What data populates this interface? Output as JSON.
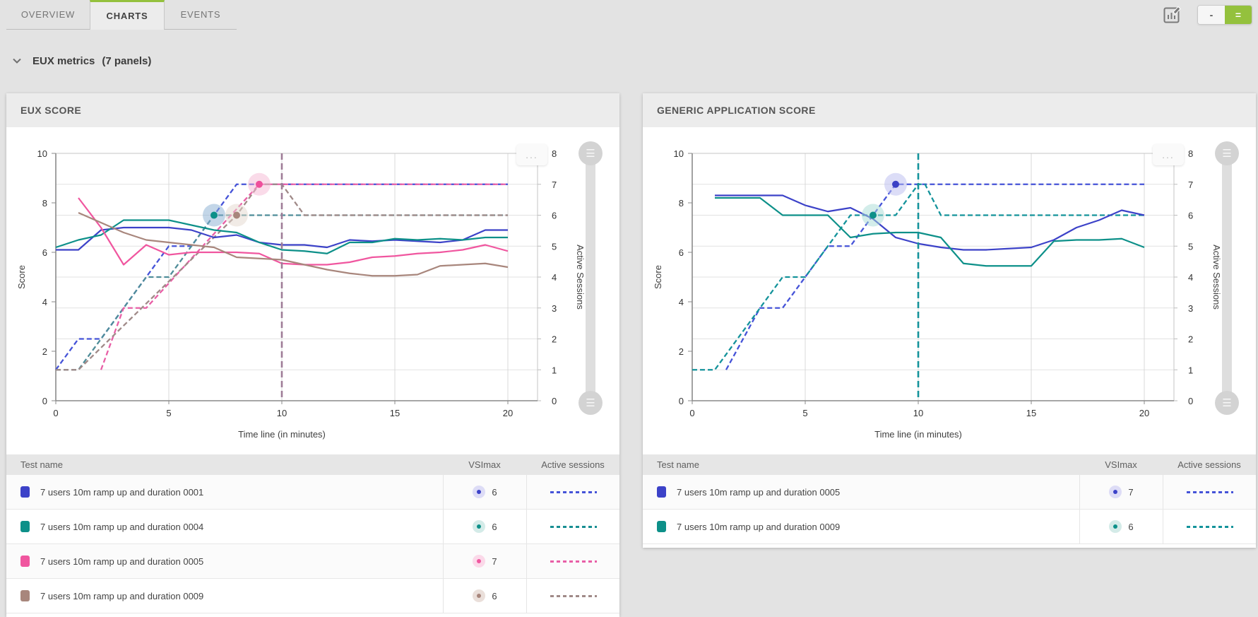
{
  "header": {
    "tabs": [
      {
        "label": "OVERVIEW",
        "active": false
      },
      {
        "label": "CHARTS",
        "active": true
      },
      {
        "label": "EVENTS",
        "active": false
      }
    ],
    "toolbar": {
      "edit_chart_icon": "bar-chart-with-pencil",
      "layout_single_label": "-",
      "layout_double_label": "=",
      "accent_green": "#94c13d"
    }
  },
  "section": {
    "collapse_icon": "chevron-down",
    "title": "EUX metrics",
    "count": "(7 panels)"
  },
  "panels": [
    {
      "title": "EUX SCORE",
      "menu_icon": "ellipsis",
      "slider_handle_icon": "drag-handle",
      "table": {
        "headers": [
          "Test name",
          "VSImax",
          "Active sessions"
        ],
        "rows": [
          {
            "swatch_color": "#3c42c8",
            "name": "7 users 10m ramp up and duration 0001",
            "vsimax": "6",
            "badge_bg": "#dddcf6",
            "dash_color": "#4553d8"
          },
          {
            "swatch_color": "#0d9089",
            "name": "7 users 10m ramp up and duration 0004",
            "vsimax": "6",
            "badge_bg": "#d4ebe8",
            "dash_color": "#188e92"
          },
          {
            "swatch_color": "#f0569f",
            "name": "7 users 10m ramp up and duration 0005",
            "vsimax": "7",
            "badge_bg": "#fbd9e9",
            "dash_color": "#e85fa6"
          },
          {
            "swatch_color": "#a8867c",
            "name": "7 users 10m ramp up and duration 0009",
            "vsimax": "6",
            "badge_bg": "#eadfda",
            "dash_color": "#a08a88"
          }
        ]
      },
      "chart_data": {
        "type": "line",
        "title": "EUX SCORE",
        "xlabel": "Time line (in minutes)",
        "ylabel_left": "Score",
        "ylabel_right": "Active Sessions",
        "xlim": [
          0,
          21.3
        ],
        "x_ticks": [
          0,
          5,
          10,
          15,
          20
        ],
        "ylim_left": [
          0,
          10
        ],
        "y_left_ticks": [
          0,
          2,
          4,
          6,
          8,
          10
        ],
        "ylim_right": [
          0,
          8
        ],
        "y_right_ticks": [
          0,
          1,
          2,
          3,
          4,
          5,
          6,
          7,
          8
        ],
        "grid": "horizontal line per active-session unit, vertical line per 5 minutes",
        "legend_position": "table-below",
        "vsimax_line": {
          "x": 10,
          "color": "#9e7c97"
        },
        "score_series": [
          {
            "name": "7 users 10m ramp up and duration 0001",
            "color": "#3c42c8",
            "points": [
              [
                0,
                6.1
              ],
              [
                1,
                6.1
              ],
              [
                2,
                6.9
              ],
              [
                3,
                7.0
              ],
              [
                4,
                7.0
              ],
              [
                5,
                7.0
              ],
              [
                6,
                6.9
              ],
              [
                7,
                6.6
              ],
              [
                8,
                6.7
              ],
              [
                9,
                6.4
              ],
              [
                10,
                6.3
              ],
              [
                11,
                6.3
              ],
              [
                12,
                6.2
              ],
              [
                13,
                6.5
              ],
              [
                14,
                6.45
              ],
              [
                15,
                6.5
              ],
              [
                16,
                6.45
              ],
              [
                17,
                6.4
              ],
              [
                18,
                6.5
              ],
              [
                19,
                6.9
              ],
              [
                20,
                6.9
              ]
            ]
          },
          {
            "name": "7 users 10m ramp up and duration 0004",
            "color": "#0d9089",
            "points": [
              [
                0,
                6.2
              ],
              [
                1,
                6.5
              ],
              [
                2,
                6.7
              ],
              [
                3,
                7.3
              ],
              [
                4,
                7.3
              ],
              [
                5,
                7.3
              ],
              [
                6,
                7.1
              ],
              [
                7,
                6.9
              ],
              [
                8,
                6.8
              ],
              [
                9,
                6.4
              ],
              [
                10,
                6.1
              ],
              [
                11,
                6.05
              ],
              [
                12,
                5.95
              ],
              [
                13,
                6.4
              ],
              [
                14,
                6.4
              ],
              [
                15,
                6.55
              ],
              [
                16,
                6.5
              ],
              [
                17,
                6.55
              ],
              [
                18,
                6.5
              ],
              [
                19,
                6.6
              ],
              [
                20,
                6.6
              ]
            ]
          },
          {
            "name": "7 users 10m ramp up and duration 0005",
            "color": "#f0569f",
            "points": [
              [
                1,
                8.2
              ],
              [
                2,
                7.0
              ],
              [
                3,
                5.5
              ],
              [
                4,
                6.3
              ],
              [
                5,
                5.9
              ],
              [
                6,
                6.0
              ],
              [
                7,
                6.0
              ],
              [
                8,
                6.0
              ],
              [
                9,
                5.95
              ],
              [
                10,
                5.55
              ],
              [
                11,
                5.5
              ],
              [
                12,
                5.5
              ],
              [
                13,
                5.6
              ],
              [
                14,
                5.8
              ],
              [
                15,
                5.85
              ],
              [
                16,
                5.95
              ],
              [
                17,
                6.0
              ],
              [
                18,
                6.1
              ],
              [
                19,
                6.3
              ],
              [
                20,
                6.05
              ]
            ]
          },
          {
            "name": "7 users 10m ramp up and duration 0009",
            "color": "#a8867c",
            "points": [
              [
                1,
                7.6
              ],
              [
                2,
                7.2
              ],
              [
                3,
                6.8
              ],
              [
                4,
                6.5
              ],
              [
                5,
                6.4
              ],
              [
                6,
                6.3
              ],
              [
                7,
                6.2
              ],
              [
                8,
                5.8
              ],
              [
                9,
                5.75
              ],
              [
                10,
                5.7
              ],
              [
                11,
                5.5
              ],
              [
                12,
                5.3
              ],
              [
                13,
                5.15
              ],
              [
                14,
                5.05
              ],
              [
                15,
                5.05
              ],
              [
                16,
                5.1
              ],
              [
                17,
                5.45
              ],
              [
                18,
                5.5
              ],
              [
                19,
                5.55
              ],
              [
                20,
                5.4
              ]
            ]
          }
        ],
        "session_series": [
          {
            "name": "7 users 10m ramp up and duration 0001",
            "color": "#4553d8",
            "points": [
              [
                0,
                1
              ],
              [
                1,
                2
              ],
              [
                2,
                2
              ],
              [
                5,
                5
              ],
              [
                6,
                5
              ],
              [
                8,
                7
              ],
              [
                20,
                7
              ]
            ]
          },
          {
            "name": "7 users 10m ramp up and duration 0004",
            "color": "#4f8d99",
            "points": [
              [
                0,
                1
              ],
              [
                1,
                1
              ],
              [
                4,
                4
              ],
              [
                5,
                4
              ],
              [
                7,
                6
              ],
              [
                20,
                6
              ]
            ]
          },
          {
            "name": "7 users 10m ramp up and duration 0005",
            "color": "#e85fa6",
            "points": [
              [
                2,
                1
              ],
              [
                3,
                3
              ],
              [
                4,
                3
              ],
              [
                9,
                7
              ],
              [
                20,
                7
              ]
            ]
          },
          {
            "name": "7 users 10m ramp up and duration 0009",
            "color": "#a08a88",
            "points": [
              [
                0,
                1
              ],
              [
                1,
                1
              ],
              [
                8,
                6
              ],
              [
                9,
                7
              ],
              [
                10,
                7
              ],
              [
                11,
                6
              ],
              [
                20,
                6
              ]
            ]
          }
        ],
        "vsimax_markers": [
          {
            "x": 7,
            "session": 6,
            "dot_color": "#0d9089",
            "halo_color": "#88aed2"
          },
          {
            "x": 8,
            "session": 6,
            "dot_color": "#a8867c",
            "halo_color": "#e3d8ce"
          },
          {
            "x": 9,
            "session": 7,
            "dot_color": "#ee4f9b",
            "halo_color": "#f5b8d3"
          }
        ]
      }
    },
    {
      "title": "GENERIC APPLICATION SCORE",
      "menu_icon": "ellipsis",
      "slider_handle_icon": "drag-handle",
      "table": {
        "headers": [
          "Test name",
          "VSImax",
          "Active sessions"
        ],
        "rows": [
          {
            "swatch_color": "#3c42c8",
            "name": "7 users 10m ramp up and duration 0005",
            "vsimax": "7",
            "badge_bg": "#dddcf6",
            "dash_color": "#4553d8"
          },
          {
            "swatch_color": "#0d9089",
            "name": "7 users 10m ramp up and duration 0009",
            "vsimax": "6",
            "badge_bg": "#d4ebe8",
            "dash_color": "#14939b"
          }
        ]
      },
      "chart_data": {
        "type": "line",
        "title": "GENERIC APPLICATION SCORE",
        "xlabel": "Time line (in minutes)",
        "ylabel_left": "Score",
        "ylabel_right": "Active Sessions",
        "xlim": [
          0,
          21.3
        ],
        "x_ticks": [
          0,
          5,
          10,
          15,
          20
        ],
        "ylim_left": [
          0,
          10
        ],
        "y_left_ticks": [
          0,
          2,
          4,
          6,
          8,
          10
        ],
        "ylim_right": [
          0,
          8
        ],
        "y_right_ticks": [
          0,
          1,
          2,
          3,
          4,
          5,
          6,
          7,
          8
        ],
        "grid": "horizontal line per active-session unit, vertical line per 5 minutes",
        "legend_position": "table-below",
        "vsimax_line": {
          "x": 10,
          "color": "#14939b"
        },
        "score_series": [
          {
            "name": "7 users 10m ramp up and duration 0005",
            "color": "#3c42c8",
            "points": [
              [
                1,
                8.3
              ],
              [
                2,
                8.3
              ],
              [
                3,
                8.3
              ],
              [
                4,
                8.3
              ],
              [
                5,
                7.9
              ],
              [
                6,
                7.65
              ],
              [
                7,
                7.8
              ],
              [
                8,
                7.35
              ],
              [
                9,
                6.6
              ],
              [
                10,
                6.35
              ],
              [
                11,
                6.2
              ],
              [
                12,
                6.1
              ],
              [
                13,
                6.1
              ],
              [
                14,
                6.15
              ],
              [
                15,
                6.2
              ],
              [
                16,
                6.5
              ],
              [
                17,
                7.0
              ],
              [
                18,
                7.3
              ],
              [
                19,
                7.7
              ],
              [
                20,
                7.5
              ]
            ]
          },
          {
            "name": "7 users 10m ramp up and duration 0009",
            "color": "#0d9089",
            "points": [
              [
                1,
                8.2
              ],
              [
                2,
                8.2
              ],
              [
                3,
                8.2
              ],
              [
                4,
                7.5
              ],
              [
                5,
                7.5
              ],
              [
                6,
                7.5
              ],
              [
                7,
                6.6
              ],
              [
                8,
                6.75
              ],
              [
                9,
                6.8
              ],
              [
                10,
                6.8
              ],
              [
                11,
                6.6
              ],
              [
                12,
                5.55
              ],
              [
                13,
                5.45
              ],
              [
                14,
                5.45
              ],
              [
                15,
                5.45
              ],
              [
                16,
                6.45
              ],
              [
                17,
                6.5
              ],
              [
                18,
                6.5
              ],
              [
                19,
                6.55
              ],
              [
                20,
                6.2
              ]
            ]
          }
        ],
        "session_series": [
          {
            "name": "7 users 10m ramp up and duration 0005",
            "color": "#4553d8",
            "points": [
              [
                1.5,
                1
              ],
              [
                3,
                3
              ],
              [
                4,
                3
              ],
              [
                6,
                5
              ],
              [
                7,
                5
              ],
              [
                9,
                7
              ],
              [
                20,
                7
              ]
            ]
          },
          {
            "name": "7 users 10m ramp up and duration 0009",
            "color": "#14939b",
            "points": [
              [
                0,
                1
              ],
              [
                1,
                1
              ],
              [
                4,
                4
              ],
              [
                5,
                4
              ],
              [
                7,
                6
              ],
              [
                9,
                6
              ],
              [
                10,
                7
              ],
              [
                10.3,
                7
              ],
              [
                11,
                6
              ],
              [
                20,
                6
              ]
            ]
          }
        ],
        "vsimax_markers": [
          {
            "x": 8,
            "session": 6,
            "dot_color": "#0d9089",
            "halo_color": "#a8dcd6"
          },
          {
            "x": 9,
            "session": 7,
            "dot_color": "#3b41c5",
            "halo_color": "#b9bbef"
          }
        ]
      }
    }
  ]
}
